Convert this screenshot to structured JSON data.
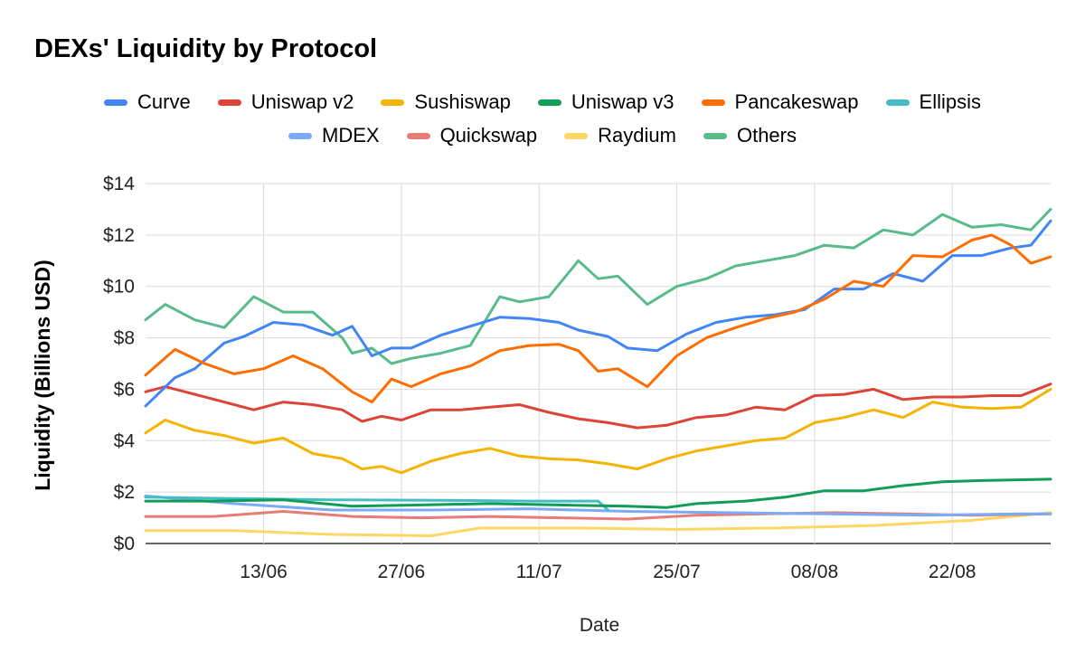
{
  "chart_data": {
    "type": "line",
    "title": "DEXs' Liquidity by Protocol",
    "xlabel": "Date",
    "ylabel": "Liquidity (Billions USD)",
    "x_ticks": [
      "13/06",
      "27/06",
      "11/07",
      "25/07",
      "08/08",
      "22/08"
    ],
    "y_ticks": [
      "$0",
      "$2",
      "$4",
      "$6",
      "$8",
      "$10",
      "$12",
      "$14"
    ],
    "ylim": [
      0,
      14
    ],
    "xlim": [
      "2021-06-01",
      "2021-09-01"
    ],
    "grid": true,
    "legend_position": "top",
    "series": [
      {
        "name": "Curve",
        "color": "#4285F4",
        "x": [
          "2021-06-01",
          "2021-06-04",
          "2021-06-06",
          "2021-06-09",
          "2021-06-11",
          "2021-06-14",
          "2021-06-17",
          "2021-06-20",
          "2021-06-22",
          "2021-06-24",
          "2021-06-26",
          "2021-06-28",
          "2021-07-01",
          "2021-07-04",
          "2021-07-07",
          "2021-07-10",
          "2021-07-13",
          "2021-07-15",
          "2021-07-18",
          "2021-07-20",
          "2021-07-23",
          "2021-07-26",
          "2021-07-29",
          "2021-08-01",
          "2021-08-04",
          "2021-08-07",
          "2021-08-10",
          "2021-08-13",
          "2021-08-16",
          "2021-08-19",
          "2021-08-22",
          "2021-08-25",
          "2021-08-28",
          "2021-08-30",
          "2021-09-01"
        ],
        "values": [
          5.35,
          6.45,
          6.8,
          7.8,
          8.05,
          8.6,
          8.5,
          8.1,
          8.45,
          7.3,
          7.6,
          7.6,
          8.1,
          8.45,
          8.8,
          8.75,
          8.6,
          8.3,
          8.05,
          7.6,
          7.5,
          8.15,
          8.6,
          8.8,
          8.9,
          9.1,
          9.9,
          9.9,
          10.5,
          10.2,
          11.2,
          11.2,
          11.5,
          11.6,
          12.55
        ]
      },
      {
        "name": "Uniswap v2",
        "color": "#DB4437",
        "x": [
          "2021-06-01",
          "2021-06-03",
          "2021-06-06",
          "2021-06-09",
          "2021-06-12",
          "2021-06-15",
          "2021-06-18",
          "2021-06-21",
          "2021-06-23",
          "2021-06-25",
          "2021-06-27",
          "2021-06-30",
          "2021-07-03",
          "2021-07-06",
          "2021-07-09",
          "2021-07-12",
          "2021-07-15",
          "2021-07-18",
          "2021-07-21",
          "2021-07-24",
          "2021-07-27",
          "2021-07-30",
          "2021-08-02",
          "2021-08-05",
          "2021-08-08",
          "2021-08-11",
          "2021-08-14",
          "2021-08-17",
          "2021-08-20",
          "2021-08-23",
          "2021-08-26",
          "2021-08-29",
          "2021-09-01"
        ],
        "values": [
          5.9,
          6.1,
          5.8,
          5.5,
          5.2,
          5.5,
          5.4,
          5.2,
          4.75,
          4.95,
          4.8,
          5.2,
          5.2,
          5.3,
          5.4,
          5.1,
          4.85,
          4.7,
          4.5,
          4.6,
          4.9,
          5.0,
          5.3,
          5.2,
          5.75,
          5.8,
          6.0,
          5.6,
          5.7,
          5.7,
          5.75,
          5.75,
          6.2
        ]
      },
      {
        "name": "Sushiswap",
        "color": "#F4B400",
        "x": [
          "2021-06-01",
          "2021-06-03",
          "2021-06-06",
          "2021-06-09",
          "2021-06-12",
          "2021-06-15",
          "2021-06-18",
          "2021-06-21",
          "2021-06-23",
          "2021-06-25",
          "2021-06-27",
          "2021-06-30",
          "2021-07-03",
          "2021-07-06",
          "2021-07-09",
          "2021-07-12",
          "2021-07-15",
          "2021-07-18",
          "2021-07-21",
          "2021-07-24",
          "2021-07-27",
          "2021-07-30",
          "2021-08-02",
          "2021-08-05",
          "2021-08-08",
          "2021-08-11",
          "2021-08-14",
          "2021-08-17",
          "2021-08-20",
          "2021-08-23",
          "2021-08-26",
          "2021-08-29",
          "2021-09-01"
        ],
        "values": [
          4.3,
          4.8,
          4.4,
          4.2,
          3.9,
          4.1,
          3.5,
          3.3,
          2.9,
          3.0,
          2.75,
          3.2,
          3.5,
          3.7,
          3.4,
          3.3,
          3.25,
          3.1,
          2.9,
          3.3,
          3.6,
          3.8,
          4.0,
          4.1,
          4.7,
          4.9,
          5.2,
          4.9,
          5.5,
          5.3,
          5.25,
          5.3,
          6.0
        ]
      },
      {
        "name": "Uniswap v3",
        "color": "#0F9D58",
        "x": [
          "2021-06-01",
          "2021-06-08",
          "2021-06-15",
          "2021-06-22",
          "2021-06-29",
          "2021-07-06",
          "2021-07-13",
          "2021-07-20",
          "2021-07-24",
          "2021-07-27",
          "2021-08-01",
          "2021-08-05",
          "2021-08-09",
          "2021-08-13",
          "2021-08-17",
          "2021-08-21",
          "2021-08-25",
          "2021-09-01"
        ],
        "values": [
          1.65,
          1.65,
          1.7,
          1.45,
          1.5,
          1.55,
          1.5,
          1.45,
          1.4,
          1.55,
          1.65,
          1.8,
          2.05,
          2.05,
          2.25,
          2.4,
          2.45,
          2.5
        ]
      },
      {
        "name": "Pancakeswap",
        "color": "#FF6D00",
        "x": [
          "2021-06-01",
          "2021-06-04",
          "2021-06-07",
          "2021-06-10",
          "2021-06-13",
          "2021-06-16",
          "2021-06-19",
          "2021-06-22",
          "2021-06-24",
          "2021-06-26",
          "2021-06-28",
          "2021-07-01",
          "2021-07-04",
          "2021-07-07",
          "2021-07-10",
          "2021-07-13",
          "2021-07-15",
          "2021-07-17",
          "2021-07-19",
          "2021-07-22",
          "2021-07-25",
          "2021-07-28",
          "2021-07-31",
          "2021-08-03",
          "2021-08-06",
          "2021-08-09",
          "2021-08-12",
          "2021-08-15",
          "2021-08-18",
          "2021-08-21",
          "2021-08-24",
          "2021-08-26",
          "2021-08-28",
          "2021-08-30",
          "2021-09-01"
        ],
        "values": [
          6.55,
          7.55,
          7.0,
          6.6,
          6.8,
          7.3,
          6.8,
          5.9,
          5.5,
          6.4,
          6.1,
          6.6,
          6.9,
          7.5,
          7.7,
          7.75,
          7.5,
          6.7,
          6.8,
          6.1,
          7.3,
          8.0,
          8.4,
          8.75,
          9.0,
          9.5,
          10.2,
          10.0,
          11.2,
          11.15,
          11.8,
          12.0,
          11.6,
          10.9,
          11.15
        ]
      },
      {
        "name": "Ellipsis",
        "color": "#46BDC6",
        "x": [
          "2021-06-01",
          "2021-06-10",
          "2021-06-20",
          "2021-07-01",
          "2021-07-10",
          "2021-07-17",
          "2021-07-18"
        ],
        "values": [
          1.8,
          1.75,
          1.7,
          1.68,
          1.65,
          1.65,
          1.3
        ]
      },
      {
        "name": "MDEX",
        "color": "#7BAAF7",
        "x": [
          "2021-06-01",
          "2021-06-10",
          "2021-06-20",
          "2021-06-30",
          "2021-07-10",
          "2021-07-20",
          "2021-07-30",
          "2021-08-09",
          "2021-08-19",
          "2021-08-29",
          "2021-09-01"
        ],
        "values": [
          1.85,
          1.55,
          1.3,
          1.3,
          1.35,
          1.25,
          1.2,
          1.15,
          1.1,
          1.15,
          1.15
        ]
      },
      {
        "name": "Quickswap",
        "color": "#E67C73",
        "x": [
          "2021-06-01",
          "2021-06-08",
          "2021-06-15",
          "2021-06-22",
          "2021-06-29",
          "2021-07-06",
          "2021-07-13",
          "2021-07-20",
          "2021-07-27",
          "2021-08-03",
          "2021-08-10",
          "2021-08-17",
          "2021-08-24",
          "2021-09-01"
        ],
        "values": [
          1.05,
          1.05,
          1.25,
          1.05,
          1.0,
          1.05,
          1.0,
          0.95,
          1.1,
          1.15,
          1.2,
          1.15,
          1.1,
          1.15
        ]
      },
      {
        "name": "Raydium",
        "color": "#FDD663",
        "x": [
          "2021-06-01",
          "2021-06-10",
          "2021-06-20",
          "2021-06-30",
          "2021-07-05",
          "2021-07-15",
          "2021-07-25",
          "2021-08-04",
          "2021-08-14",
          "2021-08-24",
          "2021-09-01"
        ],
        "values": [
          0.5,
          0.5,
          0.35,
          0.3,
          0.6,
          0.6,
          0.55,
          0.6,
          0.7,
          0.9,
          1.2
        ]
      },
      {
        "name": "Others",
        "color": "#57BB8A",
        "x": [
          "2021-06-01",
          "2021-06-03",
          "2021-06-06",
          "2021-06-09",
          "2021-06-12",
          "2021-06-15",
          "2021-06-18",
          "2021-06-21",
          "2021-06-22",
          "2021-06-24",
          "2021-06-26",
          "2021-06-28",
          "2021-07-01",
          "2021-07-04",
          "2021-07-07",
          "2021-07-09",
          "2021-07-12",
          "2021-07-15",
          "2021-07-17",
          "2021-07-19",
          "2021-07-22",
          "2021-07-25",
          "2021-07-28",
          "2021-07-31",
          "2021-08-03",
          "2021-08-06",
          "2021-08-09",
          "2021-08-12",
          "2021-08-15",
          "2021-08-18",
          "2021-08-21",
          "2021-08-24",
          "2021-08-27",
          "2021-08-30",
          "2021-09-01"
        ],
        "values": [
          8.7,
          9.3,
          8.7,
          8.4,
          9.6,
          9.0,
          9.0,
          8.0,
          7.4,
          7.6,
          7.0,
          7.2,
          7.4,
          7.7,
          9.6,
          9.4,
          9.6,
          11.0,
          10.3,
          10.4,
          9.3,
          10.0,
          10.3,
          10.8,
          11.0,
          11.2,
          11.6,
          11.5,
          12.2,
          12.0,
          12.8,
          12.3,
          12.4,
          12.2,
          13.0
        ]
      }
    ]
  }
}
